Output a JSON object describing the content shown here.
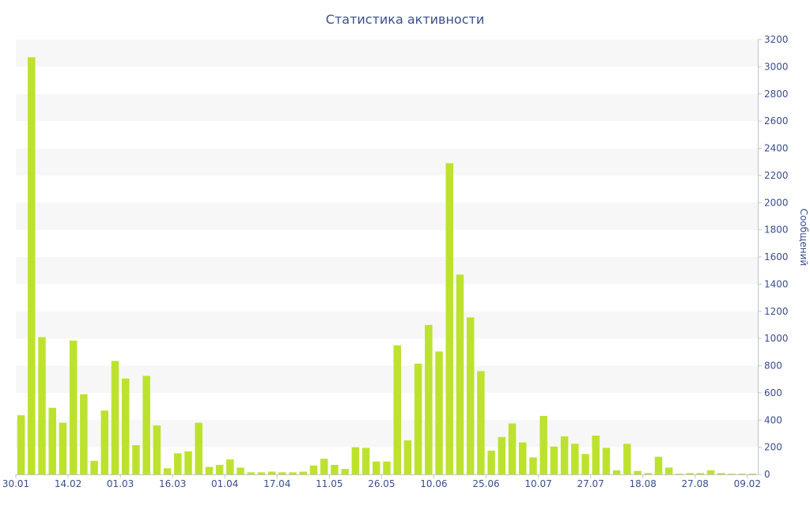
{
  "chart_data": {
    "type": "bar",
    "title": "Статистика активности",
    "ylabel": "Сообщений",
    "xlabel": "",
    "y_axis_side": "right",
    "ylim": [
      0,
      3200
    ],
    "yticks": [
      0,
      200,
      400,
      600,
      800,
      1000,
      1200,
      1400,
      1600,
      1800,
      2000,
      2200,
      2400,
      2600,
      2800,
      3000,
      3200
    ],
    "xtick_labels": [
      "30.01",
      "14.02",
      "01.03",
      "16.03",
      "01.04",
      "17.04",
      "11.05",
      "26.05",
      "10.06",
      "25.06",
      "10.07",
      "27.07",
      "18.08",
      "27.08",
      "09.02"
    ],
    "xtick_bar_index": [
      0,
      5,
      10,
      15,
      20,
      25,
      30,
      35,
      40,
      45,
      50,
      55,
      60,
      65,
      70
    ],
    "bar_color": "#bde22e",
    "band_color": "#f7f7f7",
    "values": [
      435,
      3070,
      1010,
      490,
      380,
      985,
      590,
      100,
      470,
      835,
      705,
      215,
      725,
      360,
      45,
      155,
      170,
      380,
      55,
      70,
      110,
      50,
      15,
      15,
      20,
      15,
      15,
      20,
      65,
      115,
      70,
      40,
      200,
      195,
      95,
      95,
      950,
      250,
      815,
      1100,
      905,
      2290,
      1470,
      1155,
      760,
      175,
      275,
      375,
      235,
      125,
      430,
      205,
      280,
      225,
      150,
      285,
      195,
      30,
      225,
      25,
      10,
      130,
      50,
      5,
      10,
      10,
      30,
      10,
      5,
      5,
      5
    ]
  }
}
